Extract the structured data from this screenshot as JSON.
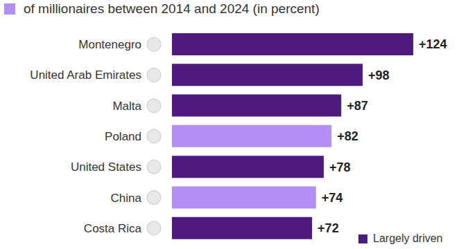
{
  "chart_data": {
    "type": "bar",
    "subtitle": "of millionaires between 2014 and 2024 (in percent)",
    "orientation": "horizontal",
    "categories": [
      "Montenegro",
      "United Arab Emirates",
      "Malta",
      "Poland",
      "United States",
      "China",
      "Costa Rica"
    ],
    "values": [
      124,
      98,
      87,
      82,
      78,
      74,
      72
    ],
    "value_labels": [
      "+124",
      "+98",
      "+87",
      "+82",
      "+78",
      "+74",
      "+72"
    ],
    "colors": [
      "#4f1a7f",
      "#4f1a7f",
      "#4f1a7f",
      "#b48ef5",
      "#4f1a7f",
      "#b48ef5",
      "#4f1a7f"
    ],
    "xlim": [
      0,
      140
    ],
    "tick_labels": "y",
    "data_labels": true,
    "grid": false,
    "annotations": [
      "Largely driven"
    ]
  }
}
